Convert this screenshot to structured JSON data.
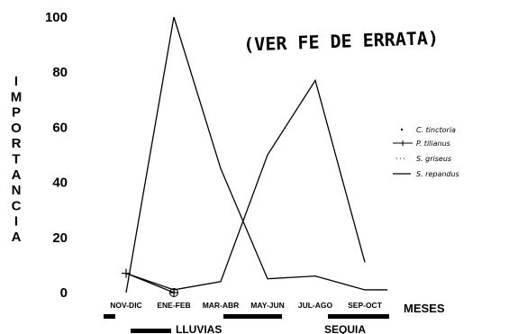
{
  "note": "(VER FE DE ERRATA)",
  "chart_data": {
    "type": "line",
    "ylabel": "IMPORTANCIA",
    "xlabel": "MESES",
    "ylim": [
      0,
      100
    ],
    "yticks": [
      "0",
      "20",
      "40",
      "60",
      "80",
      "100"
    ],
    "categories": [
      "NOV-DIC",
      "ENE-FEB",
      "MAR-ABR",
      "MAY-JUN",
      "JUL-AGO",
      "SEP-OCT",
      ""
    ],
    "series": [
      {
        "name": "C. tinctoria",
        "values": [
          null,
          null,
          null,
          null,
          null,
          null,
          null
        ]
      },
      {
        "name": "P. tilianus",
        "values": [
          7,
          0,
          null,
          null,
          null,
          null,
          null
        ]
      },
      {
        "name": "S. griseus",
        "values": [
          0,
          100,
          45,
          5,
          6,
          1,
          1
        ]
      },
      {
        "name": "S. repandus",
        "values": [
          7,
          1,
          4,
          50,
          77,
          11,
          null
        ]
      }
    ],
    "legend_position": "right",
    "seasons": [
      {
        "label": "LLUVIAS"
      },
      {
        "label": "SEQUIA"
      }
    ]
  }
}
